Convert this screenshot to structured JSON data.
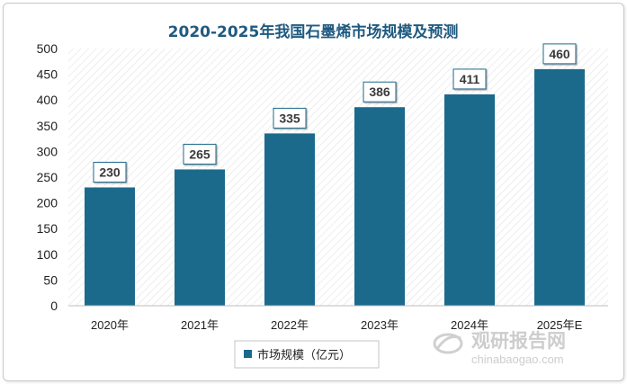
{
  "chart_data": {
    "type": "bar",
    "title": "2020-2025年我国石墨烯市场规模及预测",
    "categories": [
      "2020年",
      "2021年",
      "2022年",
      "2023年",
      "2024年",
      "2025年E"
    ],
    "series": [
      {
        "name": "市场规模（亿元）",
        "values": [
          230,
          265,
          335,
          386,
          411,
          460
        ]
      }
    ],
    "ylim": [
      0,
      500
    ],
    "yticks": [
      0,
      50,
      100,
      150,
      200,
      250,
      300,
      350,
      400,
      450,
      500
    ],
    "grid": false,
    "legend_position": "bottom",
    "data_labels": true,
    "colors": {
      "bar": "#1b6a8c",
      "title": "#1f5a80",
      "hatch": "#e6e6e6"
    }
  },
  "watermark": {
    "cn": "观研报告网",
    "en": "chinabaogao.com"
  }
}
